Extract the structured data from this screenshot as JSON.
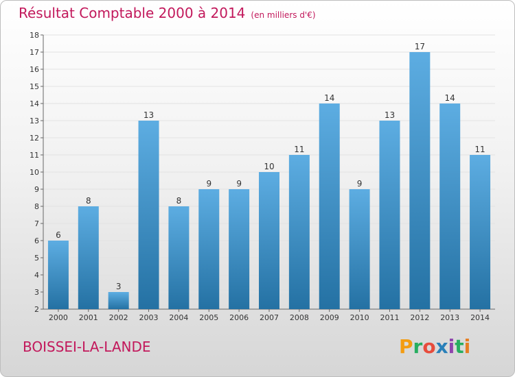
{
  "header": {
    "title": "Résultat Comptable 2000 à 2014",
    "unit": "(en milliers d'€)"
  },
  "footer": {
    "commune": "BOISSEI-LA-LANDE",
    "brand_letters": [
      "P",
      "r",
      "o",
      "x",
      "i",
      "t",
      "i"
    ],
    "brand_colors": [
      "#f39c12",
      "#27ae60",
      "#e74c3c",
      "#2980b9",
      "#8e44ad",
      "#27ae60",
      "#e67e22"
    ]
  },
  "colors": {
    "title": "#c2185b",
    "bar_light": "#5dade2",
    "bar_dark": "#2471a3",
    "axis": "#666666",
    "grid": "#e2e2e2"
  },
  "chart_data": {
    "type": "bar",
    "title": "Résultat Comptable 2000 à 2014",
    "subtitle": "(en milliers d'€)",
    "categories": [
      "2000",
      "2001",
      "2002",
      "2003",
      "2004",
      "2005",
      "2006",
      "2007",
      "2008",
      "2009",
      "2010",
      "2011",
      "2012",
      "2013",
      "2014"
    ],
    "values": [
      6,
      8,
      3,
      13,
      8,
      9,
      9,
      10,
      11,
      14,
      9,
      13,
      17,
      14,
      11
    ],
    "value_labels": [
      "6",
      "8",
      "3",
      "13",
      "8",
      "9",
      "9",
      "10",
      "11",
      "14",
      "9",
      "13",
      "17",
      "14",
      "11"
    ],
    "ylim": [
      2,
      18
    ],
    "yticks": [
      "2",
      "3",
      "4",
      "5",
      "6",
      "7",
      "8",
      "9",
      "10",
      "11",
      "12",
      "13",
      "14",
      "15",
      "16",
      "17",
      "18"
    ],
    "xlabel": "",
    "ylabel": "",
    "grid": true,
    "legend": "none"
  }
}
